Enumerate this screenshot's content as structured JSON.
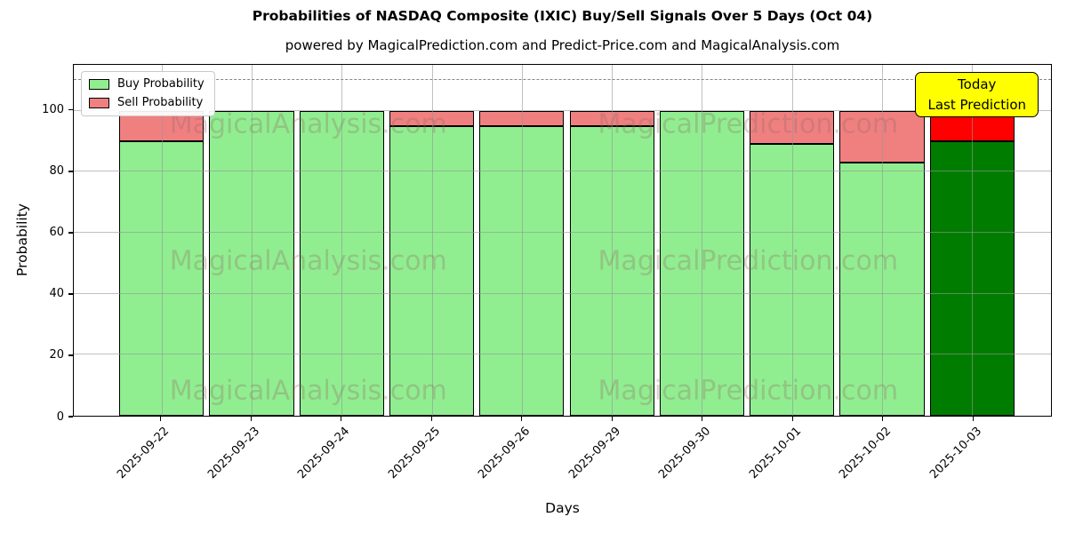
{
  "figure": {
    "title": "Probabilities of NASDAQ Composite (IXIC) Buy/Sell Signals Over 5 Days (Oct 04)",
    "subtitle": "powered by MagicalPrediction.com and Predict-Price.com and MagicalAnalysis.com"
  },
  "chart_data": {
    "type": "bar",
    "stacked": true,
    "title": "Probabilities of NASDAQ Composite (IXIC) Buy/Sell Signals Over 5 Days (Oct 04)",
    "xlabel": "Days",
    "ylabel": "Probability",
    "ylim": [
      0,
      115
    ],
    "yticks": [
      0,
      20,
      40,
      60,
      80,
      100
    ],
    "dashed_guide_y": 110,
    "grid": true,
    "legend_position": "upper left",
    "categories": [
      "2025-09-22",
      "2025-09-23",
      "2025-09-24",
      "2025-09-25",
      "2025-09-26",
      "2025-09-29",
      "2025-09-30",
      "2025-10-01",
      "2025-10-02",
      "2025-10-03"
    ],
    "series": [
      {
        "name": "Buy Probability",
        "color": "#90ee90",
        "today_color": "#007d00",
        "values": [
          90,
          100,
          100,
          95,
          95,
          95,
          100,
          89,
          83,
          90
        ]
      },
      {
        "name": "Sell Probability",
        "color": "#f08080",
        "today_color": "#ff0000",
        "values": [
          10,
          0,
          0,
          5,
          5,
          5,
          0,
          11,
          17,
          10
        ]
      }
    ],
    "bar_edge_color": "#000000",
    "gridline_color": "#969696",
    "dashed_line_color": "#858585"
  },
  "annotation": {
    "line1": "Today",
    "line2": "Last Prediction",
    "bg_color": "#ffff00",
    "border_color": "#000000"
  },
  "watermarks": {
    "left": "MagicalAnalysis.com",
    "right": "MagicalPrediction.com"
  }
}
